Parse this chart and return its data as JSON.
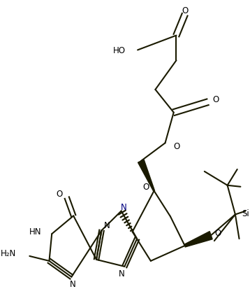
{
  "bg": "#ffffff",
  "lc": "#1a1a00",
  "lw": 1.5,
  "fs": 8.5,
  "figsize": [
    3.58,
    4.14
  ],
  "dpi": 100,
  "xlim": [
    0,
    358
  ],
  "ylim": [
    0,
    414
  ]
}
